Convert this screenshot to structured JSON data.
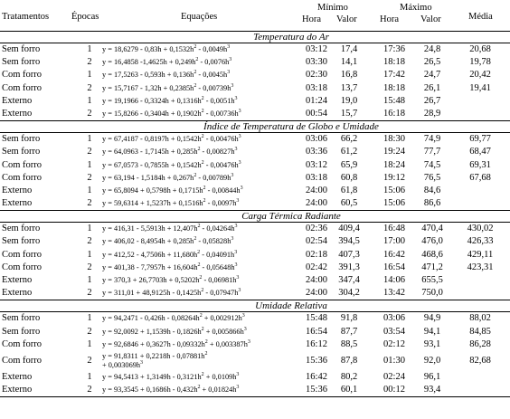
{
  "headers": {
    "tratamentos": "Tratamentos",
    "epocas": "Épocas",
    "equacoes": "Equações",
    "minimo": "Mínimo",
    "maximo": "Máximo",
    "hora": "Hora",
    "valor": "Valor",
    "media": "Média"
  },
  "sections": [
    {
      "title": "Temperatura do Ar",
      "rows": [
        {
          "trat": "Sem forro",
          "epoca": "1",
          "eq": "y = 18,6279 - 0,83h + 0,1532h² - 0,0049h³",
          "min_hora": "03:12",
          "min_valor": "17,4",
          "max_hora": "17:36",
          "max_valor": "24,8",
          "media": "20,68"
        },
        {
          "trat": "Sem forro",
          "epoca": "2",
          "eq": "y = 16,4858 -1,4625h + 0,249h² - 0,0076h³",
          "min_hora": "03:30",
          "min_valor": "14,1",
          "max_hora": "18:18",
          "max_valor": "26,5",
          "media": "19,78"
        },
        {
          "trat": "Com forro",
          "epoca": "1",
          "eq": "y = 17,5263 - 0,593h + 0,136h² - 0,0045h³",
          "min_hora": "02:30",
          "min_valor": "16,8",
          "max_hora": "17:42",
          "max_valor": "24,7",
          "media": "20,42"
        },
        {
          "trat": "Com forro",
          "epoca": "2",
          "eq": "y = 15,7167 - 1,32h + 0,2385h² - 0,00739h³",
          "min_hora": "03:18",
          "min_valor": "13,7",
          "max_hora": "18:18",
          "max_valor": "26,1",
          "media": "19,41"
        },
        {
          "trat": "Externo",
          "epoca": "1",
          "eq": "y = 19,1966 - 0,3324h + 0,1316h² - 0,0051h³",
          "min_hora": "01:24",
          "min_valor": "19,0",
          "max_hora": "15:48",
          "max_valor": "26,7",
          "media": ""
        },
        {
          "trat": "Externo",
          "epoca": "2",
          "eq": "y = 15,8266 - 0,3404h + 0,1902h² - 0,00736h³",
          "min_hora": "00:54",
          "min_valor": "15,7",
          "max_hora": "16:18",
          "max_valor": "28,9",
          "media": ""
        }
      ]
    },
    {
      "title": "Índice de Temperatura de Globo e Umidade",
      "rows": [
        {
          "trat": "Sem forro",
          "epoca": "1",
          "eq": "y = 67,4187 - 0,8197h + 0,1542h² - 0,00476h³",
          "min_hora": "03:06",
          "min_valor": "66,2",
          "max_hora": "18:30",
          "max_valor": "74,9",
          "media": "69,77"
        },
        {
          "trat": "Sem forro",
          "epoca": "2",
          "eq": "y = 64,0963 - 1,7145h + 0,285h² - 0,00827h³",
          "min_hora": "03:36",
          "min_valor": "61,2",
          "max_hora": "19:24",
          "max_valor": "77,7",
          "media": "68,47"
        },
        {
          "trat": "Com forro",
          "epoca": "1",
          "eq": "y = 67,0573 - 0,7855h + 0,1542h² - 0,00476h³",
          "min_hora": "03:12",
          "min_valor": "65,9",
          "max_hora": "18:24",
          "max_valor": "74,5",
          "media": "69,31"
        },
        {
          "trat": "Com forro",
          "epoca": "2",
          "eq": "y = 63,194 - 1,5184h + 0,267h² - 0,00789h³",
          "min_hora": "03:18",
          "min_valor": "60,8",
          "max_hora": "19:12",
          "max_valor": "76,5",
          "media": "67,68"
        },
        {
          "trat": "Externo",
          "epoca": "1",
          "eq": "y = 65,8094 + 0,5798h + 0,1715h² - 0,00844h³",
          "min_hora": "24:00",
          "min_valor": "61,8",
          "max_hora": "15:06",
          "max_valor": "84,6",
          "media": ""
        },
        {
          "trat": "Externo",
          "epoca": "2",
          "eq": "y = 59,6314 + 1,5237h + 0,1516h² - 0,0097h³",
          "min_hora": "24:00",
          "min_valor": "60,5",
          "max_hora": "15:06",
          "max_valor": "86,6",
          "media": ""
        }
      ]
    },
    {
      "title": "Carga Térmica Radiante",
      "rows": [
        {
          "trat": "Sem forro",
          "epoca": "1",
          "eq": "y = 416,31 - 5,5913h + 12,407h² - 0,04264h³",
          "min_hora": "02:36",
          "min_valor": "409,4",
          "max_hora": "16:48",
          "max_valor": "470,4",
          "media": "430,02"
        },
        {
          "trat": "Sem forro",
          "epoca": "2",
          "eq": "y = 406,02 - 8,4954h + 0,285h² - 0,05828h³",
          "min_hora": "02:54",
          "min_valor": "394,5",
          "max_hora": "17:00",
          "max_valor": "476,0",
          "media": "426,33"
        },
        {
          "trat": "Com forro",
          "epoca": "1",
          "eq": "y = 412,52 - 4,7506h + 11,680h² - 0,04091h³",
          "min_hora": "02:18",
          "min_valor": "407,3",
          "max_hora": "16:42",
          "max_valor": "468,6",
          "media": "429,11"
        },
        {
          "trat": "Com forro",
          "epoca": "2",
          "eq": "y = 401,38 - 7,7957h + 16,604h² - 0,05648h³",
          "min_hora": "02:42",
          "min_valor": "391,3",
          "max_hora": "16:54",
          "max_valor": "471,2",
          "media": "423,31"
        },
        {
          "trat": "Externo",
          "epoca": "1",
          "eq": "y = 370,3 + 26,7703h + 0,5202h² - 0,06981h³",
          "min_hora": "24:00",
          "min_valor": "347,4",
          "max_hora": "14:06",
          "max_valor": "655,5",
          "media": ""
        },
        {
          "trat": "Externo",
          "epoca": "2",
          "eq": "y = 311,01 + 48,9125h - 0,1425h² - 0,07947h³",
          "min_hora": "24:00",
          "min_valor": "304,2",
          "max_hora": "13:42",
          "max_valor": "750,0",
          "media": ""
        }
      ]
    },
    {
      "title": "Umidade Relativa",
      "rows": [
        {
          "trat": "Sem forro",
          "epoca": "1",
          "eq": "y = 94,2471 - 0,426h - 0,08264h² + 0,002912h³",
          "min_hora": "15:48",
          "min_valor": "91,8",
          "max_hora": "03:06",
          "max_valor": "94,9",
          "media": "88,02"
        },
        {
          "trat": "Sem forro",
          "epoca": "2",
          "eq": "y = 92,0092 + 1,1539h - 0,1826h² + 0,005866h³",
          "min_hora": "16:54",
          "min_valor": "87,7",
          "max_hora": "03:54",
          "max_valor": "94,1",
          "media": "84,85"
        },
        {
          "trat": "Com forro",
          "epoca": "1",
          "eq": "y = 92,6846 + 0,3627h - 0,09332h² + 0,003387h³",
          "min_hora": "16:12",
          "min_valor": "88,5",
          "max_hora": "02:12",
          "max_valor": "93,1",
          "media": "86,28"
        },
        {
          "trat": "Com forro",
          "epoca": "2",
          "eq": "y = 91,8311 + 0,2218h - 0,07881h² + 0,003069h³",
          "eq_wrap": true,
          "min_hora": "15:36",
          "min_valor": "87,8",
          "max_hora": "01:30",
          "max_valor": "92,0",
          "media": "82,68"
        },
        {
          "trat": "Externo",
          "epoca": "1",
          "eq": "y = 94,5413 + 1,3149h - 0,3121h² + 0,0109h³",
          "min_hora": "16:42",
          "min_valor": "80,2",
          "max_hora": "02:24",
          "max_valor": "96,1",
          "media": ""
        },
        {
          "trat": "Externo",
          "epoca": "2",
          "eq": "y = 93,3545 + 0,1686h - 0,432h² + 0,01824h³",
          "min_hora": "15:36",
          "min_valor": "60,1",
          "max_hora": "00:12",
          "max_valor": "93,4",
          "media": ""
        }
      ]
    }
  ]
}
